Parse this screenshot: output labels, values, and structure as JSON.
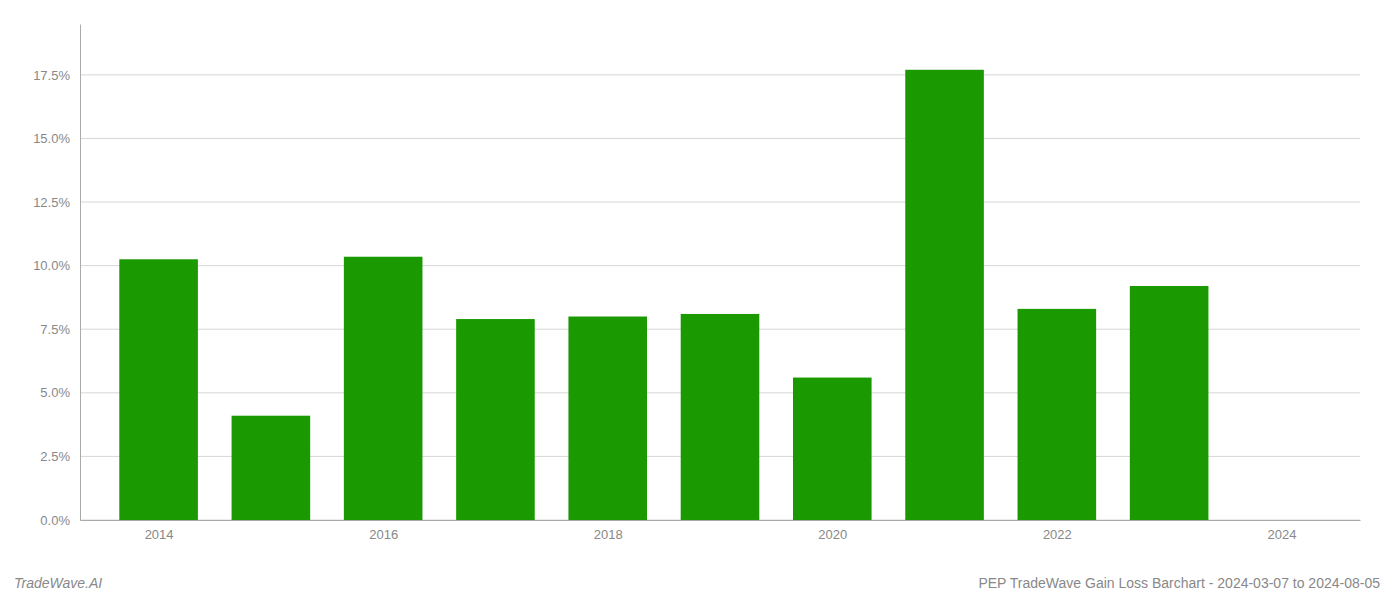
{
  "chart_data": {
    "type": "bar",
    "title": "PEP TradeWave Gain Loss Barchart - 2024-03-07 to 2024-08-05",
    "annotations": [
      "TradeWave.AI"
    ],
    "x": [
      2014,
      2015,
      2016,
      2017,
      2018,
      2019,
      2020,
      2021,
      2022,
      2023
    ],
    "values": [
      0.1025,
      0.041,
      0.1035,
      0.079,
      0.08,
      0.081,
      0.056,
      0.177,
      0.083,
      0.092
    ],
    "color": "#1a9900",
    "xlim": [
      2013.3,
      2024.7
    ],
    "xticks": [
      2014,
      2016,
      2018,
      2020,
      2022,
      2024
    ],
    "ylim": [
      0,
      0.195
    ],
    "yticks": [
      {
        "value": 0.0,
        "label": "0.0%"
      },
      {
        "value": 0.025,
        "label": "2.5%"
      },
      {
        "value": 0.05,
        "label": "5.0%"
      },
      {
        "value": 0.075,
        "label": "7.5%"
      },
      {
        "value": 0.1,
        "label": "10.0%"
      },
      {
        "value": 0.125,
        "label": "12.5%"
      },
      {
        "value": 0.15,
        "label": "15.0%"
      },
      {
        "value": 0.175,
        "label": "17.5%"
      }
    ],
    "grid": true
  }
}
